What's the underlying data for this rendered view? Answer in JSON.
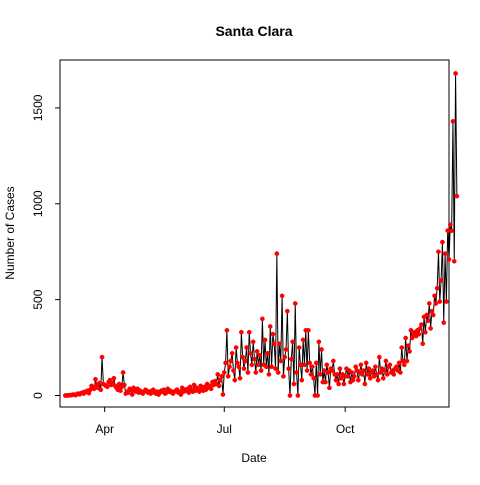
{
  "chart_data": {
    "type": "line",
    "title": "Santa Clara",
    "xlabel": "Date",
    "ylabel": "Number of Cases",
    "x_axis": "date",
    "x_range": [
      "2020-02-27",
      "2020-12-19"
    ],
    "ylim": [
      -60,
      1750
    ],
    "x_ticks": [
      {
        "date": "2020-04-01",
        "label": "Apr"
      },
      {
        "date": "2020-07-01",
        "label": "Jul"
      },
      {
        "date": "2020-10-01",
        "label": "Oct"
      }
    ],
    "y_ticks": [
      0,
      500,
      1000,
      1500
    ],
    "grid": false,
    "line_color": "#000000",
    "point_color": "#ff0000",
    "series": [
      {
        "start_date": "2020-03-02",
        "step_days": 1,
        "values": [
          0,
          0,
          0,
          2,
          1,
          3,
          5,
          4,
          2,
          8,
          10,
          6,
          12,
          15,
          10,
          20,
          18,
          25,
          12,
          30,
          50,
          45,
          35,
          85,
          55,
          40,
          65,
          30,
          200,
          60,
          55,
          50,
          45,
          70,
          80,
          55,
          65,
          90,
          50,
          40,
          30,
          60,
          25,
          45,
          120,
          55,
          10,
          20,
          15,
          35,
          30,
          5,
          40,
          25,
          20,
          35,
          15,
          25,
          18,
          10,
          20,
          30,
          25,
          15,
          20,
          10,
          25,
          30,
          15,
          10,
          20,
          5,
          15,
          25,
          20,
          30,
          10,
          15,
          35,
          20,
          25,
          15,
          10,
          20,
          25,
          30,
          15,
          20,
          5,
          40,
          20,
          30,
          25,
          35,
          15,
          45,
          30,
          20,
          55,
          25,
          40,
          30,
          20,
          50,
          35,
          25,
          45,
          30,
          60,
          40,
          50,
          35,
          70,
          55,
          75,
          60,
          110,
          50,
          80,
          100,
          5,
          120,
          170,
          340,
          100,
          150,
          180,
          220,
          130,
          80,
          250,
          170,
          150,
          90,
          330,
          200,
          140,
          180,
          250,
          120,
          330,
          220,
          160,
          280,
          190,
          120,
          230,
          160,
          210,
          130,
          400,
          160,
          290,
          150,
          220,
          110,
          360,
          150,
          320,
          270,
          140,
          740,
          120,
          270,
          180,
          520,
          100,
          200,
          240,
          440,
          140,
          0,
          190,
          280,
          60,
          480,
          120,
          0,
          250,
          160,
          80,
          290,
          160,
          340,
          130,
          340,
          170,
          110,
          150,
          90,
          0,
          170,
          0,
          280,
          110,
          240,
          70,
          130,
          70,
          160,
          120,
          40,
          140,
          130,
          180,
          110,
          80,
          110,
          60,
          140,
          90,
          110,
          60,
          100,
          140,
          100,
          130,
          70,
          120,
          80,
          100,
          150,
          130,
          80,
          120,
          160,
          110,
          130,
          60,
          170,
          110,
          140,
          90,
          120,
          130,
          100,
          150,
          110,
          80,
          200,
          120,
          140,
          90,
          130,
          180,
          110,
          150,
          160,
          120,
          130,
          110,
          140,
          150,
          130,
          170,
          120,
          250,
          180,
          160,
          300,
          180,
          260,
          230,
          340,
          300,
          320,
          330,
          310,
          340,
          320,
          350,
          370,
          270,
          410,
          330,
          420,
          390,
          480,
          350,
          440,
          420,
          520,
          480,
          560,
          750,
          490,
          600,
          800,
          380,
          740,
          490,
          860,
          710,
          890,
          860,
          1430,
          700,
          1680,
          1040
        ]
      }
    ]
  }
}
